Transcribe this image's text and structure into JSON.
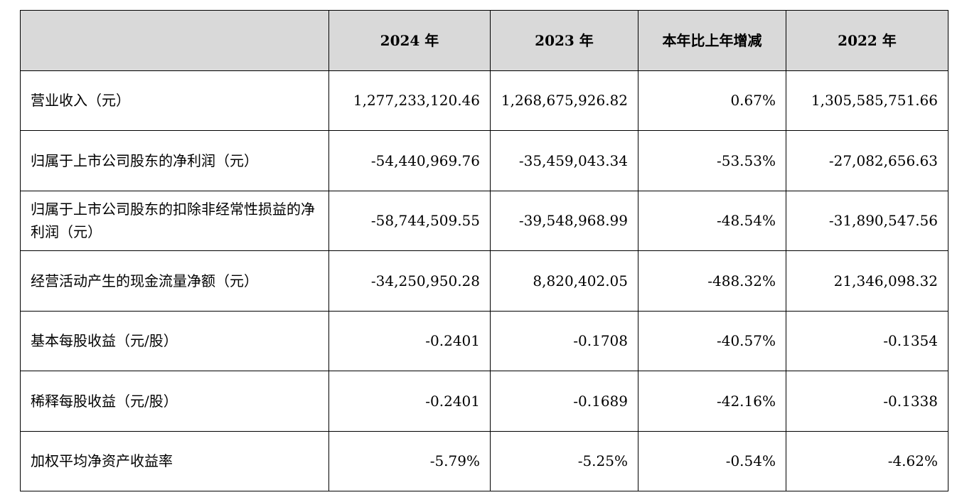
{
  "table": {
    "headers": [
      "",
      "2024 年",
      "2023 年",
      "本年比上年增减",
      "2022 年"
    ],
    "rows": [
      {
        "label": "营业收入（元）",
        "values": [
          "1,277,233,120.46",
          "1,268,675,926.82",
          "0.67%",
          "1,305,585,751.66"
        ]
      },
      {
        "label": "归属于上市公司股东的净利润（元）",
        "values": [
          "-54,440,969.76",
          "-35,459,043.34",
          "-53.53%",
          "-27,082,656.63"
        ]
      },
      {
        "label": "归属于上市公司股东的扣除非经常性损益的净利润（元）",
        "values": [
          "-58,744,509.55",
          "-39,548,968.99",
          "-48.54%",
          "-31,890,547.56"
        ]
      },
      {
        "label": "经营活动产生的现金流量净额（元）",
        "values": [
          "-34,250,950.28",
          "8,820,402.05",
          "-488.32%",
          "21,346,098.32"
        ]
      },
      {
        "label": "基本每股收益（元/股）",
        "values": [
          "-0.2401",
          "-0.1708",
          "-40.57%",
          "-0.1354"
        ]
      },
      {
        "label": "稀释每股收益（元/股）",
        "values": [
          "-0.2401",
          "-0.1689",
          "-42.16%",
          "-0.1338"
        ]
      },
      {
        "label": "加权平均净资产收益率",
        "values": [
          "-5.79%",
          "-5.25%",
          "-0.54%",
          "-4.62%"
        ]
      }
    ]
  }
}
